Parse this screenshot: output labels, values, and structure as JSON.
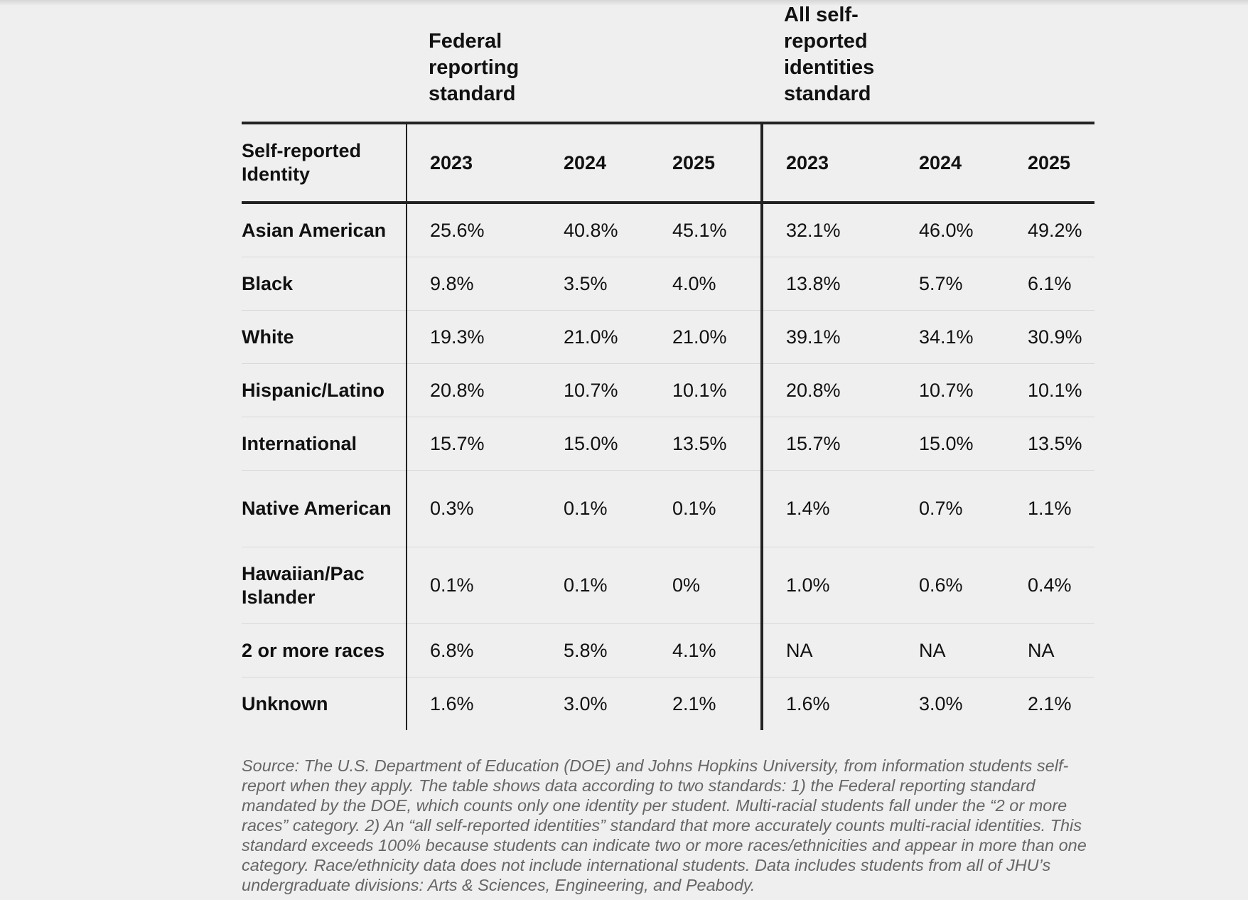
{
  "group_headers": [
    "Federal reporting standard",
    "All self-reported identities standard"
  ],
  "table": {
    "header": [
      "Self-reported Identity",
      "2023",
      "2024",
      "2025",
      "2023",
      "2024",
      "2025"
    ],
    "rows": [
      [
        "Asian American",
        "25.6%",
        "40.8%",
        "45.1%",
        "32.1%",
        "46.0%",
        "49.2%"
      ],
      [
        "Black",
        "9.8%",
        "3.5%",
        "4.0%",
        "13.8%",
        "5.7%",
        "6.1%"
      ],
      [
        "White",
        "19.3%",
        "21.0%",
        "21.0%",
        "39.1%",
        "34.1%",
        "30.9%"
      ],
      [
        "Hispanic/Latino",
        "20.8%",
        "10.7%",
        "10.1%",
        "20.8%",
        "10.7%",
        "10.1%"
      ],
      [
        "International",
        "15.7%",
        "15.0%",
        "13.5%",
        "15.7%",
        "15.0%",
        "13.5%"
      ],
      [
        "Native American",
        "0.3%",
        "0.1%",
        "0.1%",
        "1.4%",
        "0.7%",
        "1.1%"
      ],
      [
        "Hawaiian/Pac Islander",
        "0.1%",
        "0.1%",
        "0%",
        "1.0%",
        "0.6%",
        "0.4%"
      ],
      [
        "2 or more races",
        "6.8%",
        "5.8%",
        "4.1%",
        "NA",
        "NA",
        "NA"
      ],
      [
        "Unknown",
        "1.6%",
        "3.0%",
        "2.1%",
        "1.6%",
        "3.0%",
        "2.1%"
      ]
    ]
  },
  "footnote": "Source: The U.S. Department of Education (DOE) and Johns Hopkins University, from information students self-report when they apply. The table shows data according to two standards: 1) the Federal reporting standard mandated by the DOE, which counts only one identity per student. Multi-racial students fall under the “2 or more races” category. 2) An “all self-reported identities” standard that more accurately counts multi-racial identities. This standard exceeds 100% because students can indicate two or more races/ethnicities and appear in more than one category. Race/ethnicity data does not include international students. Data includes students from all of JHU’s undergraduate divisions: Arts & Sciences, Engineering, and Peabody."
}
